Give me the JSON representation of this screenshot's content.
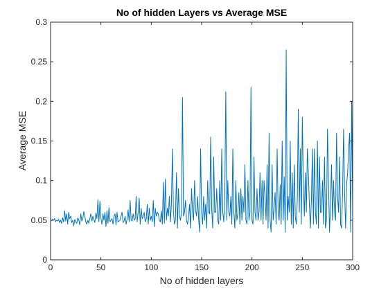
{
  "chart_data": {
    "type": "line",
    "title": "No of hidden Layers vs Average MSE",
    "xlabel": "No of hidden layers",
    "ylabel": "Average MSE",
    "xlim": [
      0,
      300
    ],
    "ylim": [
      0,
      0.3
    ],
    "xticks": [
      "0",
      "50",
      "100",
      "150",
      "200",
      "250",
      "300"
    ],
    "yticks": [
      "0",
      "0.05",
      "0.1",
      "0.15",
      "0.2",
      "0.25",
      "0.3"
    ],
    "grid": false,
    "legend": "none",
    "series": [
      {
        "color": "#0072BD",
        "x": [
          1,
          2,
          3,
          4,
          5,
          6,
          7,
          8,
          9,
          10,
          11,
          12,
          13,
          14,
          15,
          16,
          17,
          18,
          19,
          20,
          21,
          22,
          23,
          24,
          25,
          26,
          27,
          28,
          29,
          30,
          31,
          32,
          33,
          34,
          35,
          36,
          37,
          38,
          39,
          40,
          41,
          42,
          43,
          44,
          45,
          46,
          47,
          48,
          49,
          50,
          51,
          52,
          53,
          54,
          55,
          56,
          57,
          58,
          59,
          60,
          61,
          62,
          63,
          64,
          65,
          66,
          67,
          68,
          69,
          70,
          71,
          72,
          73,
          74,
          75,
          76,
          77,
          78,
          79,
          80,
          81,
          82,
          83,
          84,
          85,
          86,
          87,
          88,
          89,
          90,
          91,
          92,
          93,
          94,
          95,
          96,
          97,
          98,
          99,
          100,
          101,
          102,
          103,
          104,
          105,
          106,
          107,
          108,
          109,
          110,
          111,
          112,
          113,
          114,
          115,
          116,
          117,
          118,
          119,
          120,
          121,
          122,
          123,
          124,
          125,
          126,
          127,
          128,
          129,
          130,
          131,
          132,
          133,
          134,
          135,
          136,
          137,
          138,
          139,
          140,
          141,
          142,
          143,
          144,
          145,
          146,
          147,
          148,
          149,
          150,
          151,
          152,
          153,
          154,
          155,
          156,
          157,
          158,
          159,
          160,
          161,
          162,
          163,
          164,
          165,
          166,
          167,
          168,
          169,
          170,
          171,
          172,
          173,
          174,
          175,
          176,
          177,
          178,
          179,
          180,
          181,
          182,
          183,
          184,
          185,
          186,
          187,
          188,
          189,
          190,
          191,
          192,
          193,
          194,
          195,
          196,
          197,
          198,
          199,
          200,
          201,
          202,
          203,
          204,
          205,
          206,
          207,
          208,
          209,
          210,
          211,
          212,
          213,
          214,
          215,
          216,
          217,
          218,
          219,
          220,
          221,
          222,
          223,
          224,
          225,
          226,
          227,
          228,
          229,
          230,
          231,
          232,
          233,
          234,
          235,
          236,
          237,
          238,
          239,
          240,
          241,
          242,
          243,
          244,
          245,
          246,
          247,
          248,
          249,
          250,
          251,
          252,
          253,
          254,
          255,
          256,
          257,
          258,
          259,
          260,
          261,
          262,
          263,
          264,
          265,
          266,
          267,
          268,
          269,
          270,
          271,
          272,
          273,
          274,
          275,
          276,
          277,
          278,
          279,
          280,
          281,
          282,
          283,
          284,
          285,
          286,
          287,
          288,
          289,
          290,
          291,
          292,
          293,
          294,
          295,
          296,
          297,
          298,
          299,
          300
        ],
        "y": [
          0.049,
          0.051,
          0.05,
          0.052,
          0.048,
          0.05,
          0.049,
          0.051,
          0.047,
          0.05,
          0.046,
          0.053,
          0.048,
          0.062,
          0.049,
          0.058,
          0.045,
          0.06,
          0.052,
          0.055,
          0.047,
          0.05,
          0.043,
          0.051,
          0.048,
          0.046,
          0.053,
          0.05,
          0.044,
          0.058,
          0.049,
          0.052,
          0.061,
          0.055,
          0.048,
          0.045,
          0.05,
          0.046,
          0.052,
          0.058,
          0.049,
          0.055,
          0.051,
          0.047,
          0.059,
          0.052,
          0.076,
          0.048,
          0.074,
          0.053,
          0.045,
          0.058,
          0.05,
          0.06,
          0.042,
          0.062,
          0.046,
          0.066,
          0.048,
          0.05,
          0.052,
          0.045,
          0.055,
          0.058,
          0.044,
          0.06,
          0.048,
          0.049,
          0.05,
          0.055,
          0.06,
          0.047,
          0.049,
          0.055,
          0.045,
          0.052,
          0.063,
          0.048,
          0.075,
          0.05,
          0.049,
          0.058,
          0.05,
          0.052,
          0.08,
          0.048,
          0.06,
          0.078,
          0.045,
          0.065,
          0.052,
          0.055,
          0.06,
          0.048,
          0.052,
          0.07,
          0.045,
          0.065,
          0.05,
          0.055,
          0.048,
          0.075,
          0.042,
          0.065,
          0.055,
          0.06,
          0.058,
          0.05,
          0.048,
          0.062,
          0.045,
          0.098,
          0.046,
          0.102,
          0.05,
          0.065,
          0.055,
          0.08,
          0.048,
          0.07,
          0.14,
          0.06,
          0.045,
          0.05,
          0.11,
          0.04,
          0.09,
          0.055,
          0.05,
          0.06,
          0.205,
          0.055,
          0.06,
          0.075,
          0.05,
          0.045,
          0.055,
          0.07,
          0.04,
          0.09,
          0.06,
          0.05,
          0.1,
          0.062,
          0.055,
          0.08,
          0.052,
          0.035,
          0.14,
          0.06,
          0.045,
          0.08,
          0.05,
          0.07,
          0.04,
          0.1,
          0.06,
          0.058,
          0.155,
          0.065,
          0.04,
          0.13,
          0.06,
          0.06,
          0.09,
          0.05,
          0.045,
          0.1,
          0.05,
          0.14,
          0.06,
          0.048,
          0.08,
          0.212,
          0.05,
          0.1,
          0.06,
          0.055,
          0.08,
          0.045,
          0.14,
          0.06,
          0.04,
          0.1,
          0.05,
          0.058,
          0.085,
          0.045,
          0.09,
          0.05,
          0.08,
          0.06,
          0.12,
          0.05,
          0.045,
          0.1,
          0.05,
          0.06,
          0.218,
          0.05,
          0.045,
          0.13,
          0.06,
          0.05,
          0.09,
          0.05,
          0.06,
          0.11,
          0.05,
          0.1,
          0.045,
          0.1,
          0.08,
          0.05,
          0.12,
          0.04,
          0.16,
          0.05,
          0.035,
          0.12,
          0.05,
          0.065,
          0.085,
          0.045,
          0.14,
          0.06,
          0.05,
          0.095,
          0.045,
          0.15,
          0.05,
          0.105,
          0.035,
          0.265,
          0.05,
          0.08,
          0.06,
          0.15,
          0.045,
          0.11,
          0.04,
          0.12,
          0.055,
          0.045,
          0.075,
          0.19,
          0.06,
          0.14,
          0.045,
          0.18,
          0.1,
          0.055,
          0.11,
          0.06,
          0.14,
          0.11,
          0.07,
          0.04,
          0.075,
          0.14,
          0.045,
          0.14,
          0.06,
          0.045,
          0.15,
          0.04,
          0.13,
          0.06,
          0.06,
          0.1,
          0.045,
          0.13,
          0.04,
          0.05,
          0.165,
          0.1,
          0.035,
          0.07,
          0.12,
          0.05,
          0.1,
          0.06,
          0.05,
          0.16,
          0.08,
          0.06,
          0.13,
          0.045,
          0.04,
          0.085,
          0.165,
          0.085,
          0.04,
          0.095,
          0.11,
          0.14,
          0.16,
          0.035,
          0.2,
          0.063
        ]
      }
    ]
  }
}
